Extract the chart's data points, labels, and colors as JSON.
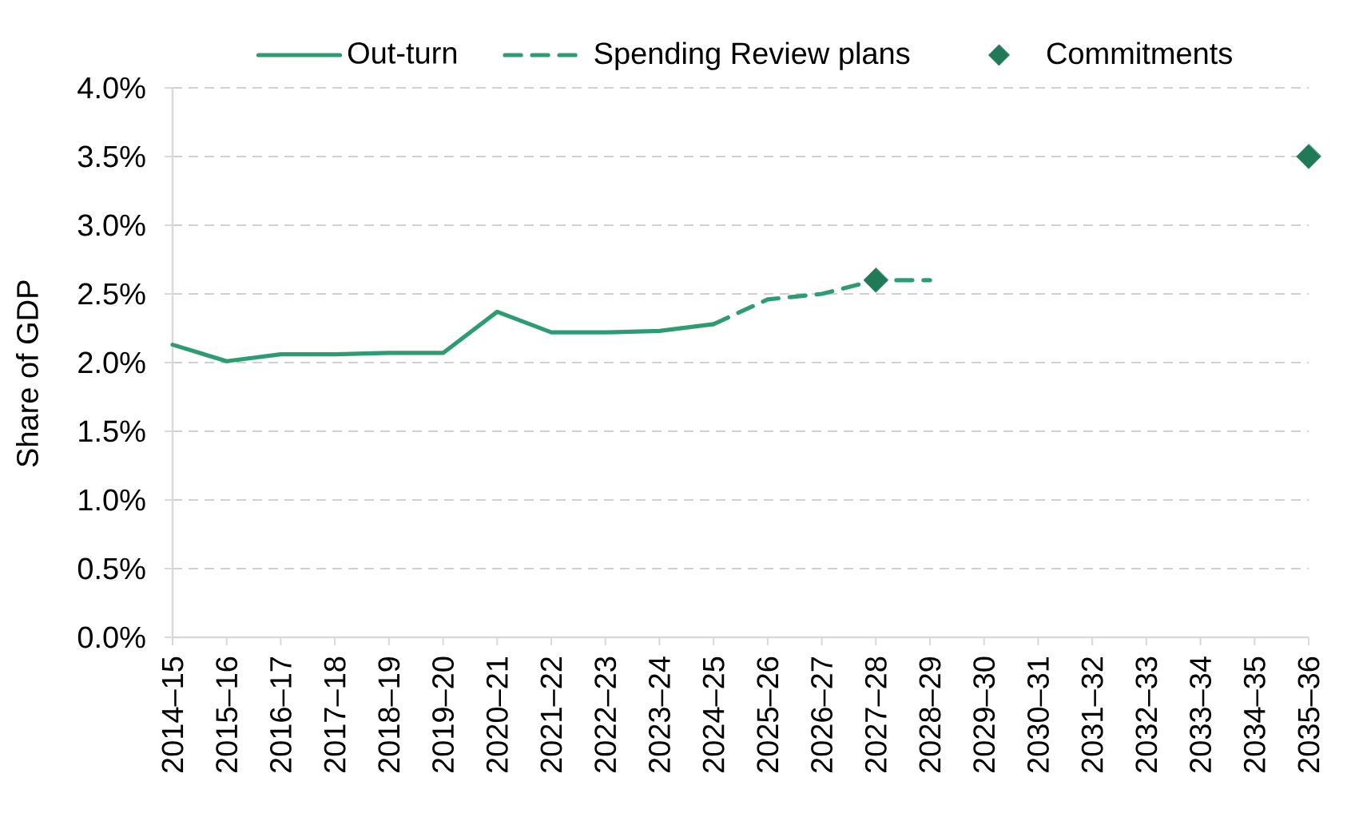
{
  "chart_data": {
    "type": "line",
    "ylabel": "Share of GDP",
    "categories": [
      "2014–15",
      "2015–16",
      "2016–17",
      "2017–18",
      "2018–19",
      "2019–20",
      "2020–21",
      "2021–22",
      "2022–23",
      "2023–24",
      "2024–25",
      "2025–26",
      "2026–27",
      "2027–28",
      "2028–29",
      "2029–30",
      "2030–31",
      "2031–32",
      "2032–33",
      "2033–34",
      "2034–35",
      "2035–36"
    ],
    "ylim": [
      0,
      4
    ],
    "yticks": [
      {
        "value": 0,
        "label": "0.0%"
      },
      {
        "value": 0.5,
        "label": "0.5%"
      },
      {
        "value": 1,
        "label": "1.0%"
      },
      {
        "value": 1.5,
        "label": "1.5%"
      },
      {
        "value": 2,
        "label": "2.0%"
      },
      {
        "value": 2.5,
        "label": "2.5%"
      },
      {
        "value": 3,
        "label": "3.0%"
      },
      {
        "value": 3.5,
        "label": "3.5%"
      },
      {
        "value": 4,
        "label": "4.0%"
      }
    ],
    "grid": "y",
    "legend": "top",
    "series": [
      {
        "name": "Out-turn",
        "color": "#2e9c73",
        "line_style": "solid",
        "marker": "none",
        "values": [
          2.13,
          2.01,
          2.06,
          2.06,
          2.07,
          2.07,
          2.37,
          2.22,
          2.22,
          2.23,
          2.28,
          null,
          null,
          null,
          null,
          null,
          null,
          null,
          null,
          null,
          null,
          null
        ]
      },
      {
        "name": "Spending Review plans",
        "color": "#2e9c73",
        "line_style": "dashed",
        "marker": "none",
        "values": [
          null,
          null,
          null,
          null,
          null,
          null,
          null,
          null,
          null,
          null,
          2.28,
          2.46,
          2.5,
          2.6,
          2.6,
          null,
          null,
          null,
          null,
          null,
          null,
          null
        ]
      },
      {
        "name": "Commitments",
        "type": "scatter",
        "color": "#217a57",
        "marker": "diamond",
        "values": [
          null,
          null,
          null,
          null,
          null,
          null,
          null,
          null,
          null,
          null,
          null,
          null,
          null,
          2.6,
          null,
          null,
          null,
          null,
          null,
          null,
          null,
          3.5
        ]
      }
    ]
  }
}
